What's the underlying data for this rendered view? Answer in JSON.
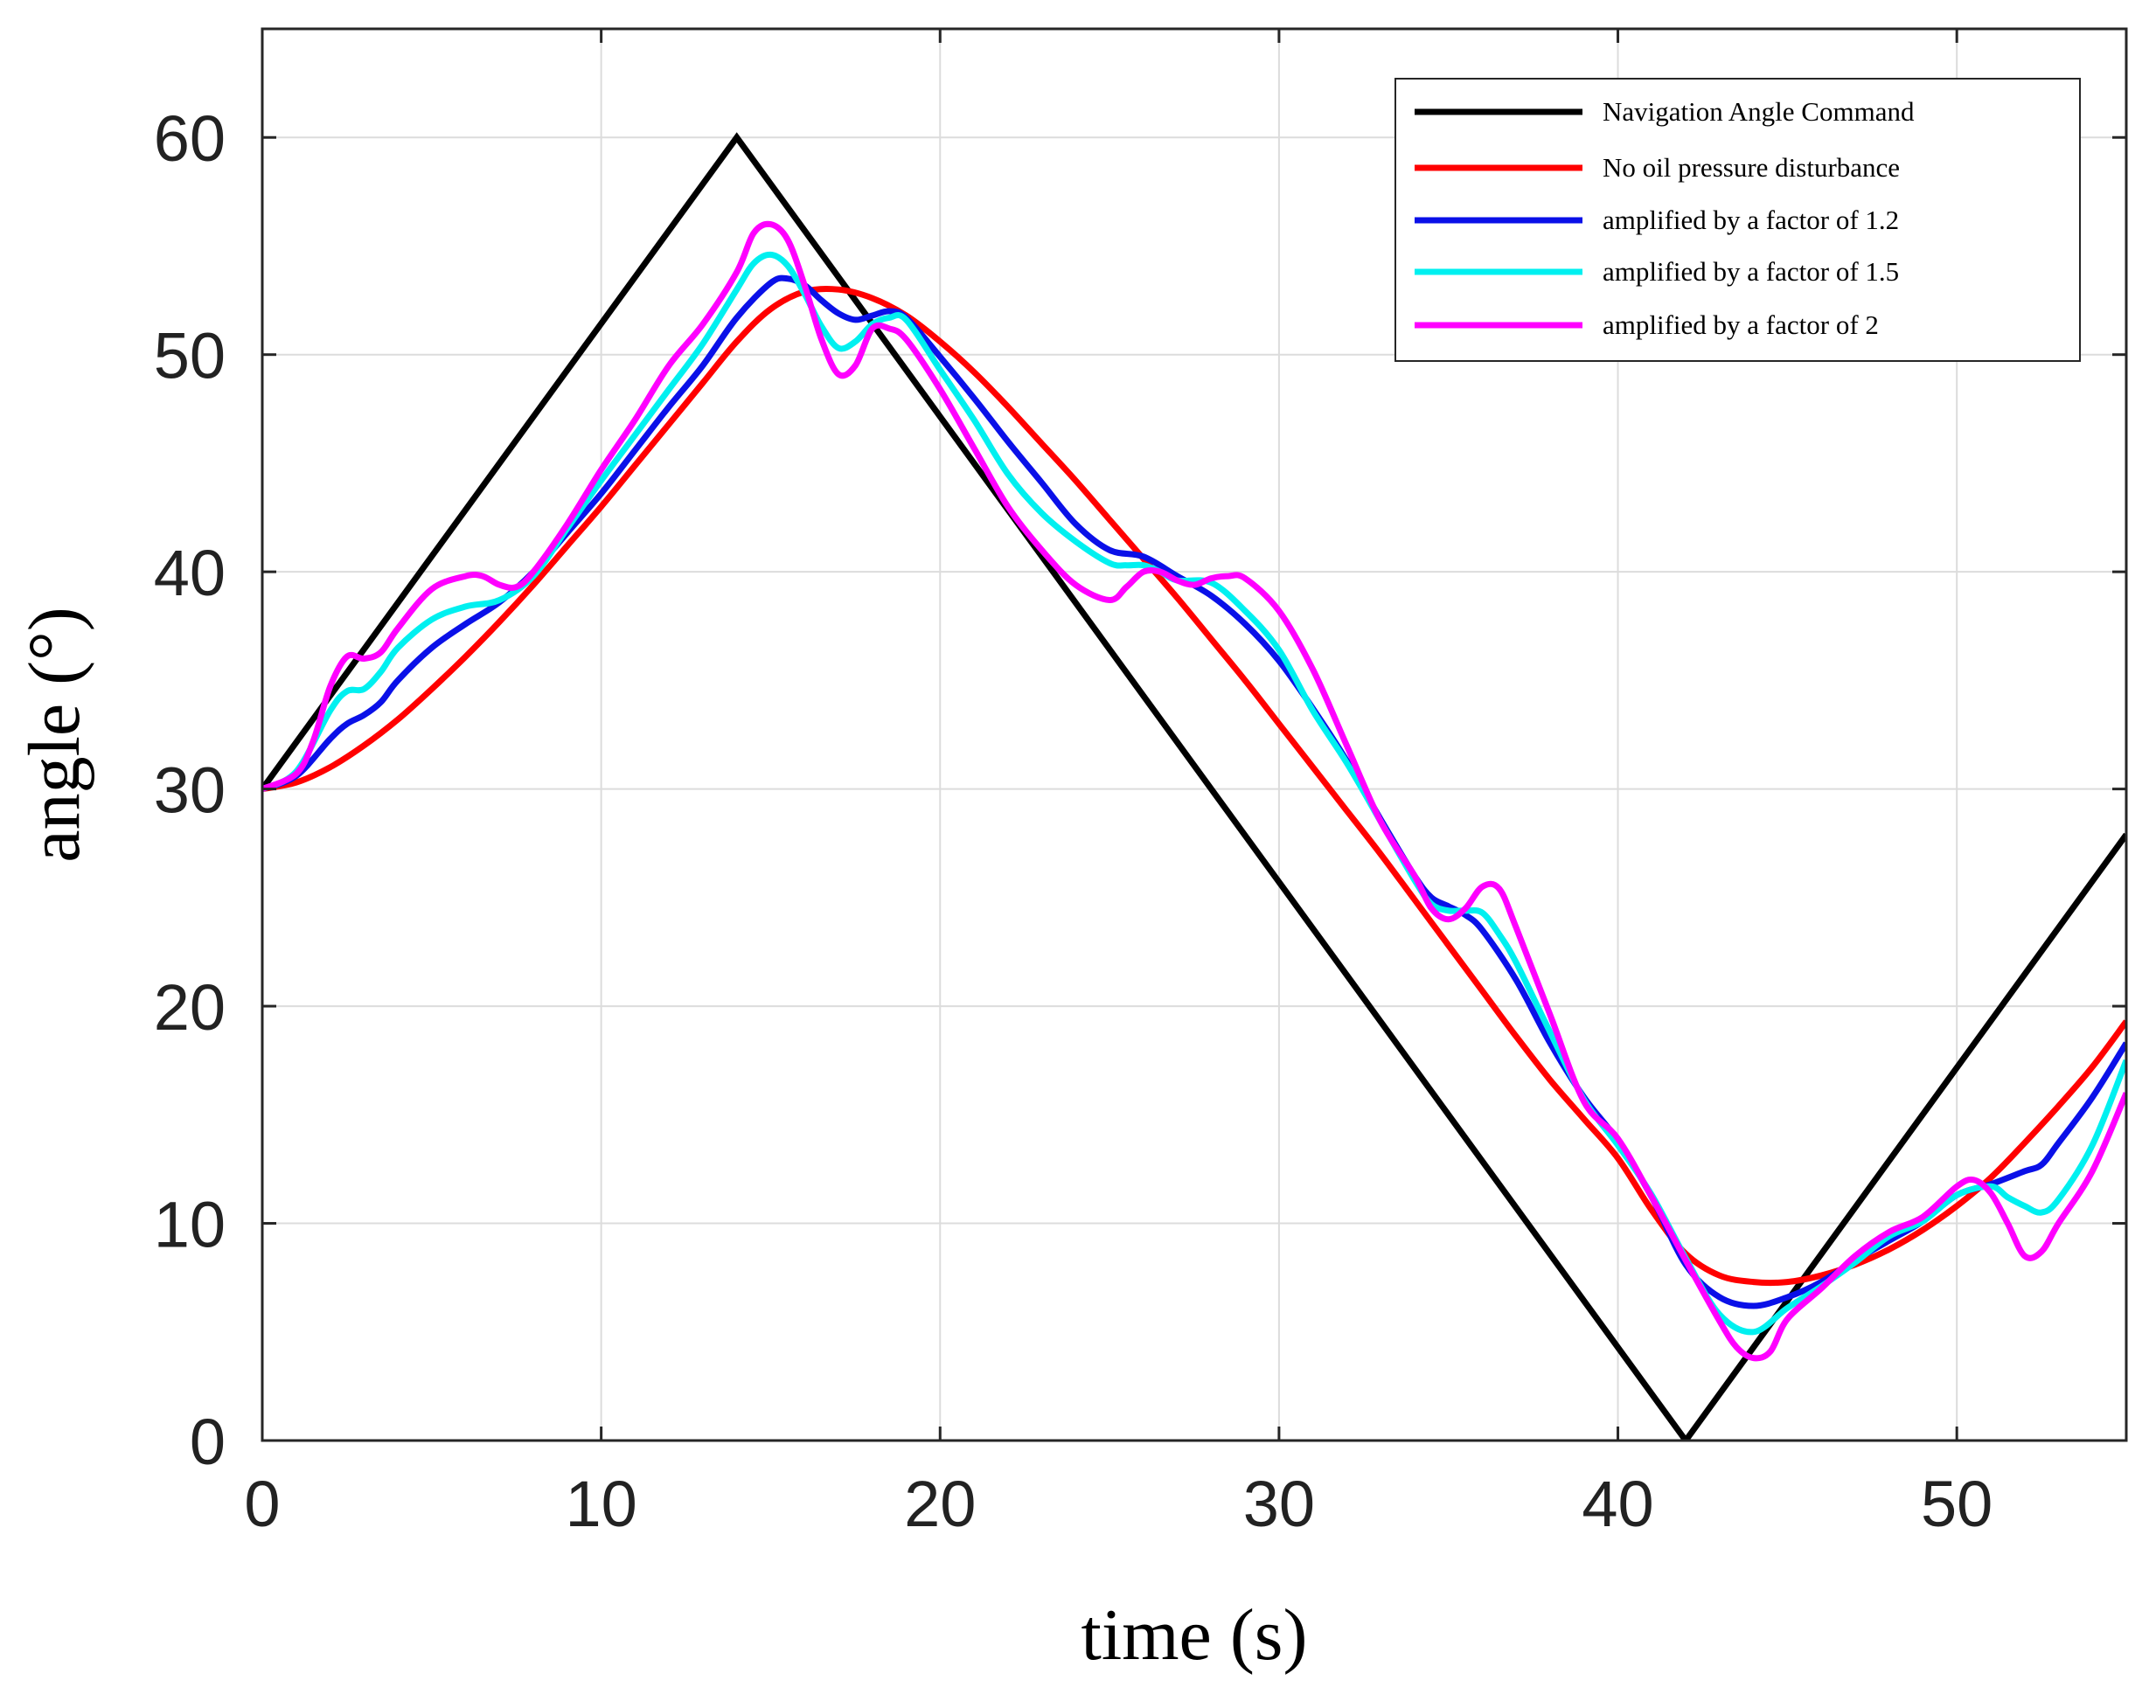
{
  "chart_data": {
    "type": "line",
    "title": "",
    "xlabel": "time (s)",
    "ylabel": "angle (°)",
    "xlim": [
      0,
      55
    ],
    "ylim": [
      0,
      65
    ],
    "xticks": [
      0,
      10,
      20,
      30,
      40,
      50
    ],
    "yticks": [
      0,
      10,
      20,
      30,
      40,
      50,
      60
    ],
    "grid": true,
    "legend_position": "top-right",
    "series": [
      {
        "name": "Navigation Angle Command",
        "color": "#000000",
        "x": [
          0,
          14,
          42,
          55
        ],
        "y": [
          30,
          60,
          0,
          27.9
        ]
      },
      {
        "name": "No oil pressure disturbance",
        "color": "#ff0000",
        "x": [
          0,
          1,
          2,
          3,
          4,
          5,
          6,
          7,
          8,
          9,
          10,
          11,
          12,
          13,
          14,
          15,
          16,
          17,
          18,
          19,
          20,
          21,
          22,
          23,
          24,
          25,
          26,
          27,
          28,
          29,
          30,
          31,
          32,
          33,
          34,
          35,
          36,
          37,
          38,
          39,
          40,
          41,
          42,
          43,
          44,
          45,
          46,
          47,
          48,
          49,
          50,
          51,
          52,
          53,
          54,
          55
        ],
        "y": [
          30,
          30.3,
          31,
          32,
          33.2,
          34.6,
          36.1,
          37.7,
          39.4,
          41.2,
          43,
          44.9,
          46.8,
          48.7,
          50.6,
          52.1,
          52.9,
          53,
          52.6,
          51.8,
          50.6,
          49.2,
          47.6,
          45.9,
          44.2,
          42.4,
          40.6,
          38.8,
          36.9,
          35,
          33,
          31,
          29,
          27,
          24.9,
          22.8,
          20.7,
          18.6,
          16.6,
          14.8,
          13,
          10.6,
          8.6,
          7.6,
          7.3,
          7.3,
          7.6,
          8.1,
          8.8,
          9.7,
          10.8,
          12.1,
          13.7,
          15.4,
          17.2,
          19.3
        ]
      },
      {
        "name": "amplified by a factor of 1.2",
        "color": "#0a10e8",
        "x": [
          0,
          1,
          2,
          2.5,
          3,
          3.5,
          4,
          5,
          6,
          7,
          8,
          9,
          10,
          11,
          12,
          13,
          14,
          15,
          15.5,
          16,
          16.5,
          17,
          17.5,
          18,
          18.5,
          19,
          20,
          21,
          22,
          23,
          24,
          25,
          26,
          27,
          28,
          29,
          30,
          31,
          32,
          33,
          34,
          34.5,
          35,
          35.5,
          36,
          37,
          38,
          39,
          40,
          41,
          42,
          43,
          44,
          45,
          46,
          47,
          48,
          49,
          50,
          51,
          52,
          52.5,
          53,
          54,
          55
        ],
        "y": [
          30,
          30.6,
          32.3,
          33,
          33.4,
          34,
          35,
          36.5,
          37.6,
          38.6,
          40,
          41.8,
          43.6,
          45.6,
          47.6,
          49.5,
          51.7,
          53.3,
          53.5,
          53.2,
          52.5,
          51.9,
          51.6,
          51.8,
          52,
          51.7,
          49.9,
          48,
          46,
          44.1,
          42.2,
          41,
          40.7,
          39.8,
          38.9,
          37.6,
          35.9,
          33.7,
          31.3,
          28.6,
          26,
          25,
          24.6,
          24.2,
          23.5,
          21.2,
          18.3,
          15.8,
          13.8,
          11.2,
          8.1,
          6.6,
          6.2,
          6.6,
          7.3,
          8.3,
          9.2,
          10.1,
          11.3,
          11.8,
          12.4,
          12.7,
          13.7,
          15.8,
          18.3
        ]
      },
      {
        "name": "amplified by a factor of 1.5",
        "color": "#00f0f0",
        "x": [
          0,
          1,
          2,
          2.5,
          3,
          3.5,
          4,
          5,
          6,
          7,
          8,
          9,
          10,
          11,
          12,
          13,
          14,
          14.5,
          15,
          15.5,
          16,
          16.5,
          17,
          17.5,
          18,
          18.5,
          19,
          20,
          21,
          22,
          23,
          24,
          25,
          25.5,
          26,
          26.5,
          27,
          28,
          29,
          30,
          31,
          32,
          33,
          34,
          34.5,
          35,
          35.5,
          36,
          36.5,
          37,
          38,
          39,
          40,
          41,
          42,
          43,
          44,
          45,
          46,
          47,
          48,
          49,
          50,
          51,
          51.5,
          52,
          52.5,
          53,
          54,
          55
        ],
        "y": [
          30,
          30.8,
          33.6,
          34.5,
          34.6,
          35.4,
          36.5,
          37.8,
          38.4,
          38.7,
          39.8,
          42,
          44.2,
          46.3,
          48.4,
          50.5,
          53,
          54.2,
          54.6,
          54.1,
          52.8,
          51.3,
          50.3,
          50.6,
          51.4,
          51.7,
          51.6,
          49.3,
          47,
          44.5,
          42.7,
          41.4,
          40.4,
          40.3,
          40.3,
          40,
          39.6,
          39.5,
          38.2,
          36.4,
          33.6,
          31.2,
          28.5,
          25.8,
          24.7,
          24.4,
          24.4,
          24.3,
          23.3,
          22,
          18.8,
          15.7,
          13.6,
          11.3,
          8.4,
          5.8,
          5,
          6.1,
          7.1,
          8.2,
          9.4,
          10.1,
          11.3,
          11.7,
          11.2,
          10.8,
          10.5,
          11.1,
          13.6,
          17.5
        ]
      },
      {
        "name": "amplified by a factor of 2",
        "color": "#ff00ff",
        "x": [
          0,
          1,
          1.5,
          2,
          2.5,
          3,
          3.5,
          4,
          5,
          6,
          6.5,
          7,
          7.5,
          8,
          9,
          10,
          11,
          12,
          13,
          14,
          14.5,
          15,
          15.5,
          16,
          16.5,
          17,
          17.5,
          18,
          18.5,
          19,
          20,
          21,
          22,
          23,
          24,
          25,
          25.5,
          26,
          26.5,
          27,
          27.5,
          28,
          28.5,
          29,
          30,
          31,
          32,
          33,
          34,
          34.5,
          35,
          35.5,
          36,
          36.5,
          37,
          38,
          39,
          40,
          41,
          42,
          43,
          43.5,
          44,
          44.5,
          45,
          46,
          47,
          48,
          49,
          50,
          50.5,
          51,
          51.5,
          52,
          52.5,
          53,
          54,
          55
        ],
        "y": [
          30,
          30.7,
          32.2,
          34.7,
          36.1,
          36,
          36.3,
          37.4,
          39.2,
          39.8,
          39.8,
          39.4,
          39.3,
          40,
          42.2,
          44.7,
          47,
          49.5,
          51.4,
          53.8,
          55.6,
          56,
          55.3,
          53.2,
          50.7,
          49.1,
          49.5,
          51.2,
          51.2,
          50.7,
          48.4,
          45.7,
          43,
          41,
          39.4,
          38.7,
          39.3,
          40,
          40,
          39.6,
          39.4,
          39.7,
          39.8,
          39.7,
          38.2,
          35.5,
          32,
          28.5,
          26,
          24.5,
          24,
          24.5,
          25.5,
          25.4,
          23.6,
          19.6,
          15.6,
          13.9,
          11.2,
          8.3,
          5.5,
          4.3,
          3.8,
          4.1,
          5.6,
          7,
          8.5,
          9.6,
          10.3,
          11.7,
          12,
          11.4,
          10,
          8.5,
          8.7,
          10,
          12.4,
          16
        ]
      }
    ]
  }
}
